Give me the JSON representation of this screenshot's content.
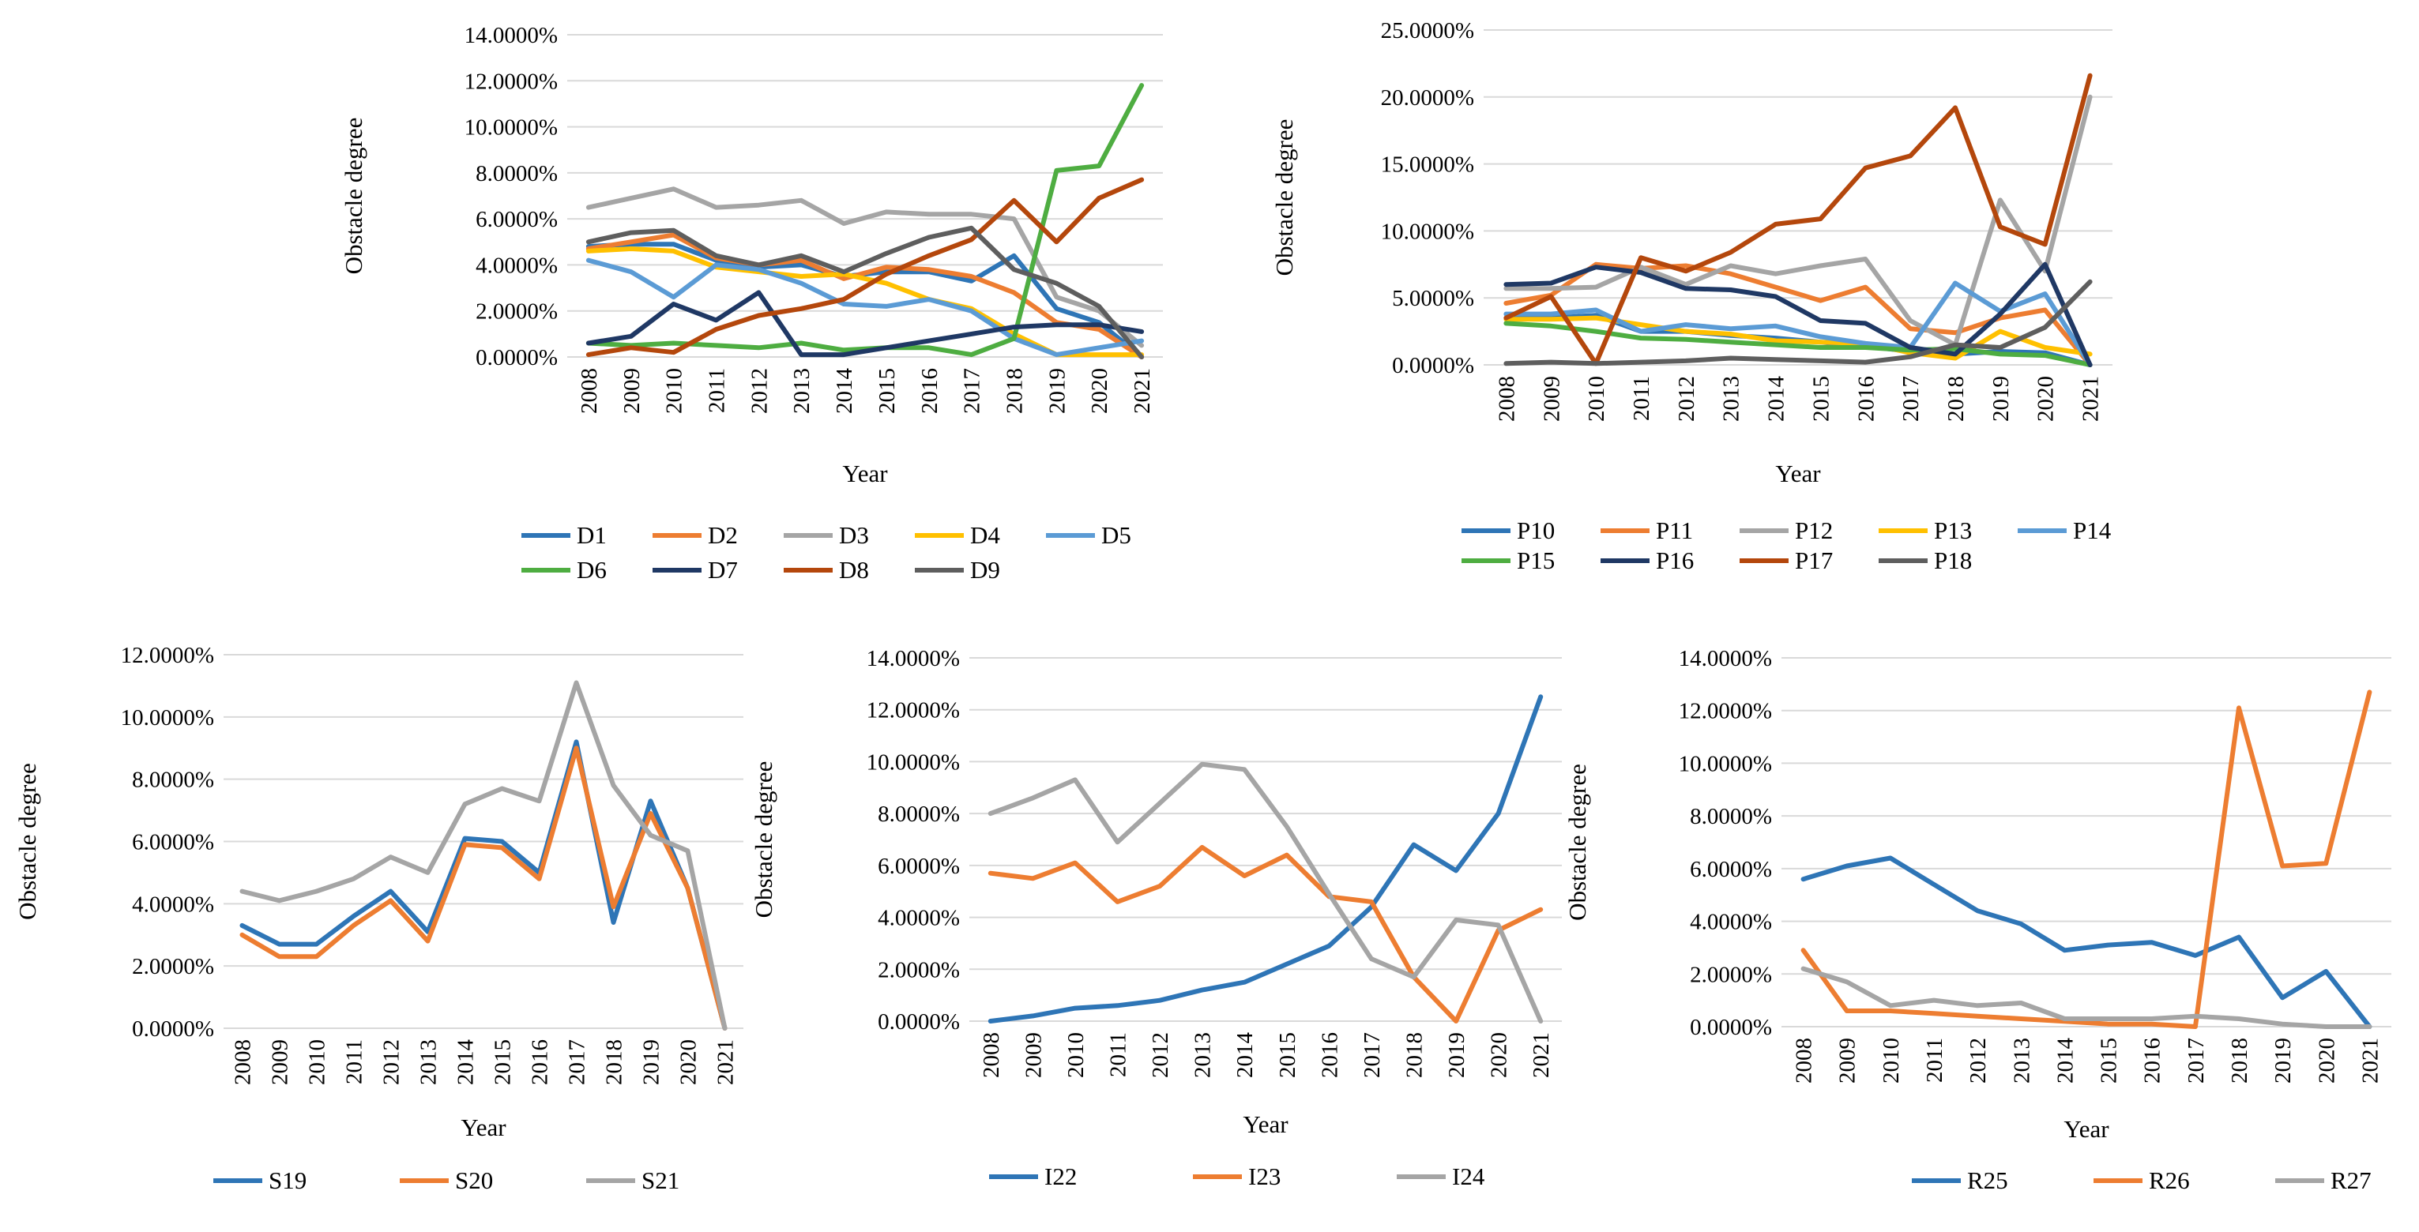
{
  "figure": {
    "description_free": true
  },
  "colors": {
    "c1": "#2E75B6",
    "c2": "#ED7D31",
    "c3": "#A5A5A5",
    "c4": "#FFC000",
    "c5": "#5B9BD5",
    "c6": "#4EAD41",
    "c7": "#1F3864",
    "c8": "#B4470C",
    "c9": "#5E5E5E"
  },
  "chart_data": [
    {
      "id": "chart-d",
      "type": "line",
      "title": "",
      "xlabel": "Year",
      "ylabel": "Obstacle degree",
      "ylim": [
        0,
        14
      ],
      "yticks": [
        "0.0000%",
        "2.0000%",
        "4.0000%",
        "6.0000%",
        "8.0000%",
        "10.0000%",
        "12.0000%",
        "14.0000%"
      ],
      "categories": [
        "2008",
        "2009",
        "2010",
        "2011",
        "2012",
        "2013",
        "2014",
        "2015",
        "2016",
        "2017",
        "2018",
        "2019",
        "2020",
        "2021"
      ],
      "legend_position": "bottom",
      "series": [
        {
          "name": "D1",
          "color": "#2E75B6",
          "values": [
            4.8,
            4.9,
            4.9,
            4.2,
            3.9,
            4.0,
            3.5,
            3.7,
            3.7,
            3.3,
            4.4,
            2.1,
            1.5,
            0.0
          ]
        },
        {
          "name": "D2",
          "color": "#ED7D31",
          "values": [
            4.7,
            5.0,
            5.3,
            4.3,
            4.0,
            4.2,
            3.4,
            3.9,
            3.8,
            3.5,
            2.8,
            1.5,
            1.2,
            0.0
          ]
        },
        {
          "name": "D3",
          "color": "#A5A5A5",
          "values": [
            6.5,
            6.9,
            7.3,
            6.5,
            6.6,
            6.8,
            5.8,
            6.3,
            6.2,
            6.2,
            6.0,
            2.6,
            2.0,
            0.5
          ]
        },
        {
          "name": "D4",
          "color": "#FFC000",
          "values": [
            4.6,
            4.7,
            4.6,
            3.9,
            3.7,
            3.5,
            3.6,
            3.2,
            2.5,
            2.1,
            1.0,
            0.1,
            0.1,
            0.1
          ]
        },
        {
          "name": "D5",
          "color": "#5B9BD5",
          "values": [
            4.2,
            3.7,
            2.6,
            4.0,
            3.8,
            3.2,
            2.3,
            2.2,
            2.5,
            2.0,
            0.8,
            0.1,
            0.4,
            0.7
          ]
        },
        {
          "name": "D6",
          "color": "#4EAD41",
          "values": [
            0.6,
            0.5,
            0.6,
            0.5,
            0.4,
            0.6,
            0.3,
            0.4,
            0.4,
            0.1,
            0.8,
            8.1,
            8.3,
            11.8
          ]
        },
        {
          "name": "D7",
          "color": "#1F3864",
          "values": [
            0.6,
            0.9,
            2.3,
            1.6,
            2.8,
            0.1,
            0.1,
            0.4,
            0.7,
            1.0,
            1.3,
            1.4,
            1.4,
            1.1
          ]
        },
        {
          "name": "D8",
          "color": "#B4470C",
          "values": [
            0.1,
            0.4,
            0.2,
            1.2,
            1.8,
            2.1,
            2.5,
            3.6,
            4.4,
            5.1,
            6.8,
            5.0,
            6.9,
            7.7
          ]
        },
        {
          "name": "D9",
          "color": "#5E5E5E",
          "values": [
            5.0,
            5.4,
            5.5,
            4.4,
            4.0,
            4.4,
            3.7,
            4.5,
            5.2,
            5.6,
            3.8,
            3.2,
            2.2,
            0.0
          ]
        }
      ]
    },
    {
      "id": "chart-p",
      "type": "line",
      "title": "",
      "xlabel": "Year",
      "ylabel": "Obstacle degree",
      "ylim": [
        0,
        25
      ],
      "yticks": [
        "0.0000%",
        "5.0000%",
        "10.0000%",
        "15.0000%",
        "20.0000%",
        "25.0000%"
      ],
      "categories": [
        "2008",
        "2009",
        "2010",
        "2011",
        "2012",
        "2013",
        "2014",
        "2015",
        "2016",
        "2017",
        "2018",
        "2019",
        "2020",
        "2021"
      ],
      "legend_position": "bottom",
      "series": [
        {
          "name": "P10",
          "color": "#2E75B6",
          "values": [
            3.5,
            3.5,
            3.7,
            2.5,
            2.5,
            2.2,
            2.0,
            1.7,
            1.4,
            1.0,
            0.8,
            1.0,
            0.9,
            0.0
          ]
        },
        {
          "name": "P11",
          "color": "#ED7D31",
          "values": [
            4.6,
            5.2,
            7.5,
            7.2,
            7.4,
            6.8,
            5.8,
            4.8,
            5.8,
            2.7,
            2.4,
            3.5,
            4.1,
            0.0
          ]
        },
        {
          "name": "P12",
          "color": "#A5A5A5",
          "values": [
            5.7,
            5.7,
            5.8,
            7.3,
            6.0,
            7.4,
            6.8,
            7.4,
            7.9,
            3.3,
            1.5,
            12.3,
            7.0,
            20.0
          ]
        },
        {
          "name": "P13",
          "color": "#FFC000",
          "values": [
            3.4,
            3.4,
            3.5,
            3.0,
            2.5,
            2.3,
            1.8,
            1.7,
            1.6,
            0.9,
            0.5,
            2.5,
            1.3,
            0.8
          ]
        },
        {
          "name": "P14",
          "color": "#5B9BD5",
          "values": [
            3.8,
            3.8,
            4.1,
            2.5,
            3.0,
            2.7,
            2.9,
            2.1,
            1.6,
            1.3,
            6.1,
            4.0,
            5.3,
            0.0
          ]
        },
        {
          "name": "P15",
          "color": "#4EAD41",
          "values": [
            3.1,
            2.9,
            2.5,
            2.0,
            1.9,
            1.7,
            1.5,
            1.3,
            1.3,
            1.1,
            1.2,
            0.8,
            0.7,
            0.0
          ]
        },
        {
          "name": "P16",
          "color": "#1F3864",
          "values": [
            6.0,
            6.1,
            7.3,
            6.9,
            5.7,
            5.6,
            5.1,
            3.3,
            3.1,
            1.3,
            0.8,
            3.8,
            7.5,
            0.0
          ]
        },
        {
          "name": "P17",
          "color": "#B4470C",
          "values": [
            3.5,
            5.1,
            0.1,
            8.0,
            7.0,
            8.4,
            10.5,
            10.9,
            14.7,
            15.6,
            19.2,
            10.3,
            9.0,
            21.6
          ]
        },
        {
          "name": "P18",
          "color": "#5E5E5E",
          "values": [
            0.1,
            0.2,
            0.1,
            0.2,
            0.3,
            0.5,
            0.4,
            0.3,
            0.2,
            0.6,
            1.5,
            1.3,
            2.8,
            6.2
          ]
        }
      ]
    },
    {
      "id": "chart-s",
      "type": "line",
      "title": "",
      "xlabel": "Year",
      "ylabel": "Obstacle degree",
      "ylim": [
        0,
        12
      ],
      "yticks": [
        "0.0000%",
        "2.0000%",
        "4.0000%",
        "6.0000%",
        "8.0000%",
        "10.0000%",
        "12.0000%"
      ],
      "categories": [
        "2008",
        "2009",
        "2010",
        "2011",
        "2012",
        "2013",
        "2014",
        "2015",
        "2016",
        "2017",
        "2018",
        "2019",
        "2020",
        "2021"
      ],
      "legend_position": "bottom",
      "series": [
        {
          "name": "S19",
          "color": "#2E75B6",
          "values": [
            3.3,
            2.7,
            2.7,
            3.6,
            4.4,
            3.1,
            6.1,
            6.0,
            5.0,
            9.2,
            3.4,
            7.3,
            4.5,
            0.0
          ]
        },
        {
          "name": "S20",
          "color": "#ED7D31",
          "values": [
            3.0,
            2.3,
            2.3,
            3.3,
            4.1,
            2.8,
            5.9,
            5.8,
            4.8,
            9.0,
            3.9,
            6.9,
            4.5,
            0.0
          ]
        },
        {
          "name": "S21",
          "color": "#A5A5A5",
          "values": [
            4.4,
            4.1,
            4.4,
            4.8,
            5.5,
            5.0,
            7.2,
            7.7,
            7.3,
            11.1,
            7.8,
            6.2,
            5.7,
            0.0
          ]
        }
      ]
    },
    {
      "id": "chart-i",
      "type": "line",
      "title": "",
      "xlabel": "Year",
      "ylabel": "Obstacle degree",
      "ylim": [
        0,
        14
      ],
      "yticks": [
        "0.0000%",
        "2.0000%",
        "4.0000%",
        "6.0000%",
        "8.0000%",
        "10.0000%",
        "12.0000%",
        "14.0000%"
      ],
      "categories": [
        "2008",
        "2009",
        "2010",
        "2011",
        "2012",
        "2013",
        "2014",
        "2015",
        "2016",
        "2017",
        "2018",
        "2019",
        "2020",
        "2021"
      ],
      "legend_position": "bottom",
      "series": [
        {
          "name": "I22",
          "color": "#2E75B6",
          "values": [
            0.0,
            0.2,
            0.5,
            0.6,
            0.8,
            1.2,
            1.5,
            2.2,
            2.9,
            4.4,
            6.8,
            5.8,
            8.0,
            12.5
          ]
        },
        {
          "name": "I23",
          "color": "#ED7D31",
          "values": [
            5.7,
            5.5,
            6.1,
            4.6,
            5.2,
            6.7,
            5.6,
            6.4,
            4.8,
            4.6,
            1.7,
            0.0,
            3.5,
            4.3
          ]
        },
        {
          "name": "I24",
          "color": "#A5A5A5",
          "values": [
            8.0,
            8.6,
            9.3,
            6.9,
            8.4,
            9.9,
            9.7,
            7.5,
            4.9,
            2.4,
            1.7,
            3.9,
            3.7,
            0.0
          ]
        }
      ]
    },
    {
      "id": "chart-r",
      "type": "line",
      "title": "",
      "xlabel": "Year",
      "ylabel": "Obstacle degree",
      "ylim": [
        0,
        14
      ],
      "yticks": [
        "0.0000%",
        "2.0000%",
        "4.0000%",
        "6.0000%",
        "8.0000%",
        "10.0000%",
        "12.0000%",
        "14.0000%"
      ],
      "categories": [
        "2008",
        "2009",
        "2010",
        "2011",
        "2012",
        "2013",
        "2014",
        "2015",
        "2016",
        "2017",
        "2018",
        "2019",
        "2020",
        "2021"
      ],
      "legend_position": "bottom",
      "series": [
        {
          "name": "R25",
          "color": "#2E75B6",
          "values": [
            5.6,
            6.1,
            6.4,
            5.4,
            4.4,
            3.9,
            2.9,
            3.1,
            3.2,
            2.7,
            3.4,
            1.1,
            2.1,
            0.0
          ]
        },
        {
          "name": "R26",
          "color": "#ED7D31",
          "values": [
            2.9,
            0.6,
            0.6,
            0.5,
            0.4,
            0.3,
            0.2,
            0.1,
            0.1,
            0.0,
            12.1,
            6.1,
            6.2,
            12.7
          ]
        },
        {
          "name": "R27",
          "color": "#A5A5A5",
          "values": [
            2.2,
            1.7,
            0.8,
            1.0,
            0.8,
            0.9,
            0.3,
            0.3,
            0.3,
            0.4,
            0.3,
            0.1,
            0.0,
            0.0
          ]
        }
      ]
    }
  ]
}
